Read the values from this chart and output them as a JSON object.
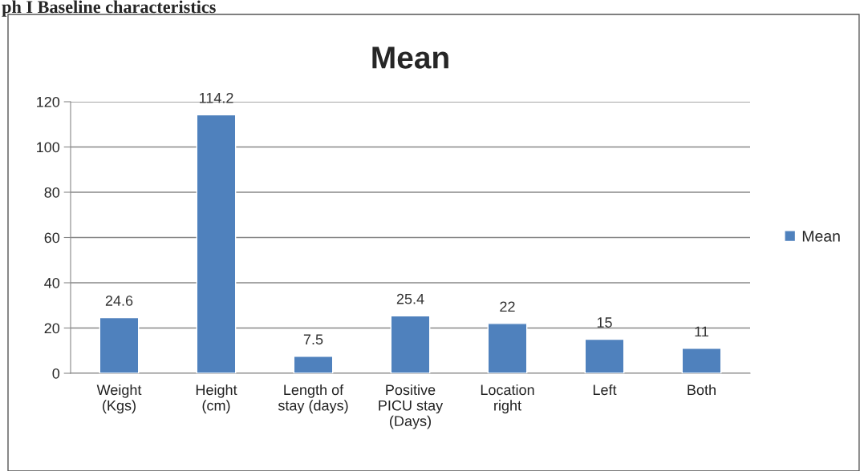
{
  "chart_data": {
    "type": "bar",
    "title": "Mean",
    "annotations": [
      "ph I Baseline characteristics"
    ],
    "categories": [
      "Weight\n(Kgs)",
      "Height\n(cm)",
      "Length of\nstay (days)",
      "Positive\nPICU stay\n(Days)",
      "Location\nright",
      "Left",
      "Both"
    ],
    "series": [
      {
        "name": "Mean",
        "color": "#4f81bd",
        "values": [
          24.6,
          114.2,
          7.5,
          25.4,
          22,
          15,
          11
        ]
      }
    ],
    "ylim": [
      0,
      120
    ],
    "yticks": [
      0,
      20,
      40,
      60,
      80,
      100,
      120
    ],
    "grid": "y",
    "legend": "right",
    "data_labels": true
  }
}
